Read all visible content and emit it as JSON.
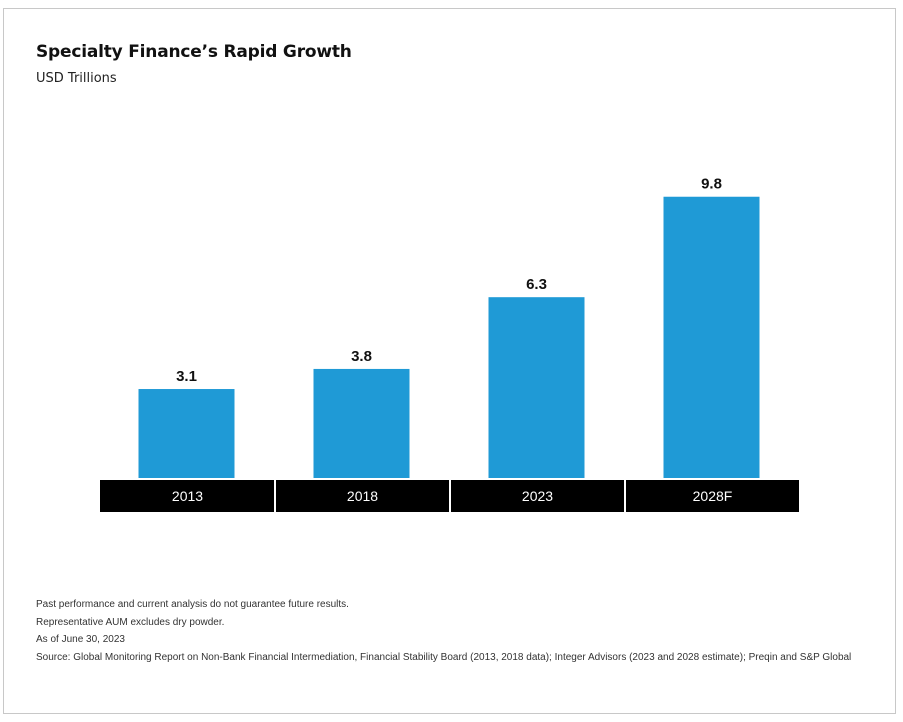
{
  "chart_data": {
    "type": "bar",
    "title": "Specialty Finance’s Rapid Growth",
    "subtitle": "USD Trillions",
    "categories": [
      "2013",
      "2018",
      "2023",
      "2028F"
    ],
    "values": [
      3.1,
      3.8,
      6.3,
      9.8
    ],
    "value_labels": [
      "3.1",
      "3.8",
      "6.3",
      "9.8"
    ],
    "ylim": [
      0,
      10.5
    ],
    "grid": false,
    "legend": "none",
    "colors": {
      "bar": "#1f9ad6",
      "category_band": "#000000",
      "category_text": "#ffffff"
    }
  },
  "footnotes": [
    "Past performance and current analysis do not guarantee future results.",
    "Representative AUM excludes dry powder.",
    "As of June 30, 2023",
    "Source: Global Monitoring Report on Non-Bank Financial Intermediation, Financial Stability Board (2013, 2018 data); Integer Advisors (2023 and 2028 estimate); Preqin and S&P Global"
  ]
}
